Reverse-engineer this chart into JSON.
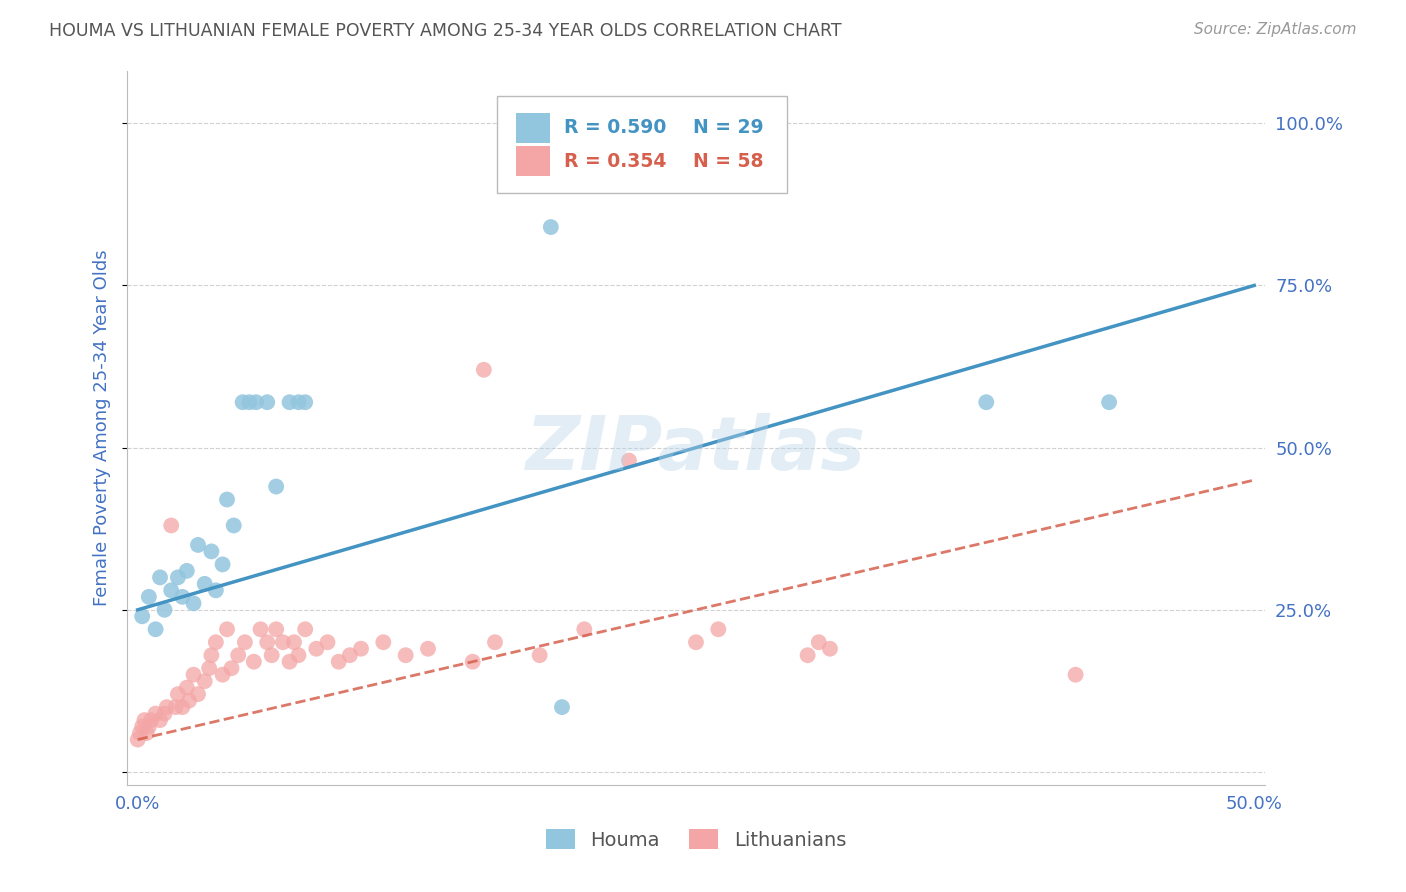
{
  "title": "HOUMA VS LITHUANIAN FEMALE POVERTY AMONG 25-34 YEAR OLDS CORRELATION CHART",
  "source": "Source: ZipAtlas.com",
  "xlabel_ticks": [
    "0.0%",
    "",
    "",
    "",
    "",
    "50.0%"
  ],
  "xlabel_vals": [
    0.0,
    0.1,
    0.2,
    0.3,
    0.4,
    0.5
  ],
  "ylabel": "Female Poverty Among 25-34 Year Olds",
  "ylabel_ticks": [
    "",
    "25.0%",
    "50.0%",
    "75.0%",
    "100.0%"
  ],
  "ylabel_vals": [
    0.0,
    0.25,
    0.5,
    0.75,
    1.0
  ],
  "xlim": [
    -0.005,
    0.505
  ],
  "ylim": [
    -0.02,
    1.08
  ],
  "houma_R": 0.59,
  "houma_N": 29,
  "lith_R": 0.354,
  "lith_N": 58,
  "houma_color": "#92c5de",
  "lith_color": "#f4a6a6",
  "line_houma_color": "#4393c3",
  "line_lith_color": "#d6604d",
  "watermark": "ZIPatlas",
  "houma_x": [
    0.002,
    0.005,
    0.008,
    0.01,
    0.012,
    0.015,
    0.018,
    0.02,
    0.022,
    0.025,
    0.027,
    0.03,
    0.033,
    0.035,
    0.038,
    0.04,
    0.043,
    0.047,
    0.05,
    0.053,
    0.058,
    0.062,
    0.068,
    0.072,
    0.075,
    0.185,
    0.19,
    0.38,
    0.435
  ],
  "houma_y": [
    0.24,
    0.27,
    0.22,
    0.3,
    0.25,
    0.28,
    0.3,
    0.27,
    0.31,
    0.26,
    0.35,
    0.29,
    0.34,
    0.28,
    0.32,
    0.42,
    0.38,
    0.57,
    0.57,
    0.57,
    0.57,
    0.44,
    0.57,
    0.57,
    0.57,
    0.84,
    0.1,
    0.57,
    0.57
  ],
  "lith_x": [
    0.0,
    0.001,
    0.002,
    0.003,
    0.004,
    0.005,
    0.006,
    0.008,
    0.01,
    0.012,
    0.013,
    0.015,
    0.017,
    0.018,
    0.02,
    0.022,
    0.023,
    0.025,
    0.027,
    0.03,
    0.032,
    0.033,
    0.035,
    0.038,
    0.04,
    0.042,
    0.045,
    0.048,
    0.052,
    0.055,
    0.058,
    0.06,
    0.062,
    0.065,
    0.068,
    0.07,
    0.072,
    0.075,
    0.08,
    0.085,
    0.09,
    0.095,
    0.1,
    0.11,
    0.12,
    0.13,
    0.15,
    0.155,
    0.16,
    0.18,
    0.2,
    0.22,
    0.25,
    0.26,
    0.3,
    0.305,
    0.31,
    0.42
  ],
  "lith_y": [
    0.05,
    0.06,
    0.07,
    0.08,
    0.06,
    0.07,
    0.08,
    0.09,
    0.08,
    0.09,
    0.1,
    0.38,
    0.1,
    0.12,
    0.1,
    0.13,
    0.11,
    0.15,
    0.12,
    0.14,
    0.16,
    0.18,
    0.2,
    0.15,
    0.22,
    0.16,
    0.18,
    0.2,
    0.17,
    0.22,
    0.2,
    0.18,
    0.22,
    0.2,
    0.17,
    0.2,
    0.18,
    0.22,
    0.19,
    0.2,
    0.17,
    0.18,
    0.19,
    0.2,
    0.18,
    0.19,
    0.17,
    0.62,
    0.2,
    0.18,
    0.22,
    0.48,
    0.2,
    0.22,
    0.18,
    0.2,
    0.19,
    0.15
  ],
  "background_color": "#ffffff",
  "grid_color": "#cccccc",
  "title_color": "#555555",
  "tick_label_color": "#4472c4",
  "houma_line_x": [
    0.0,
    0.5
  ],
  "houma_line_y": [
    0.25,
    0.75
  ],
  "lith_line_x": [
    0.0,
    0.5
  ],
  "lith_line_y": [
    0.05,
    0.45
  ]
}
